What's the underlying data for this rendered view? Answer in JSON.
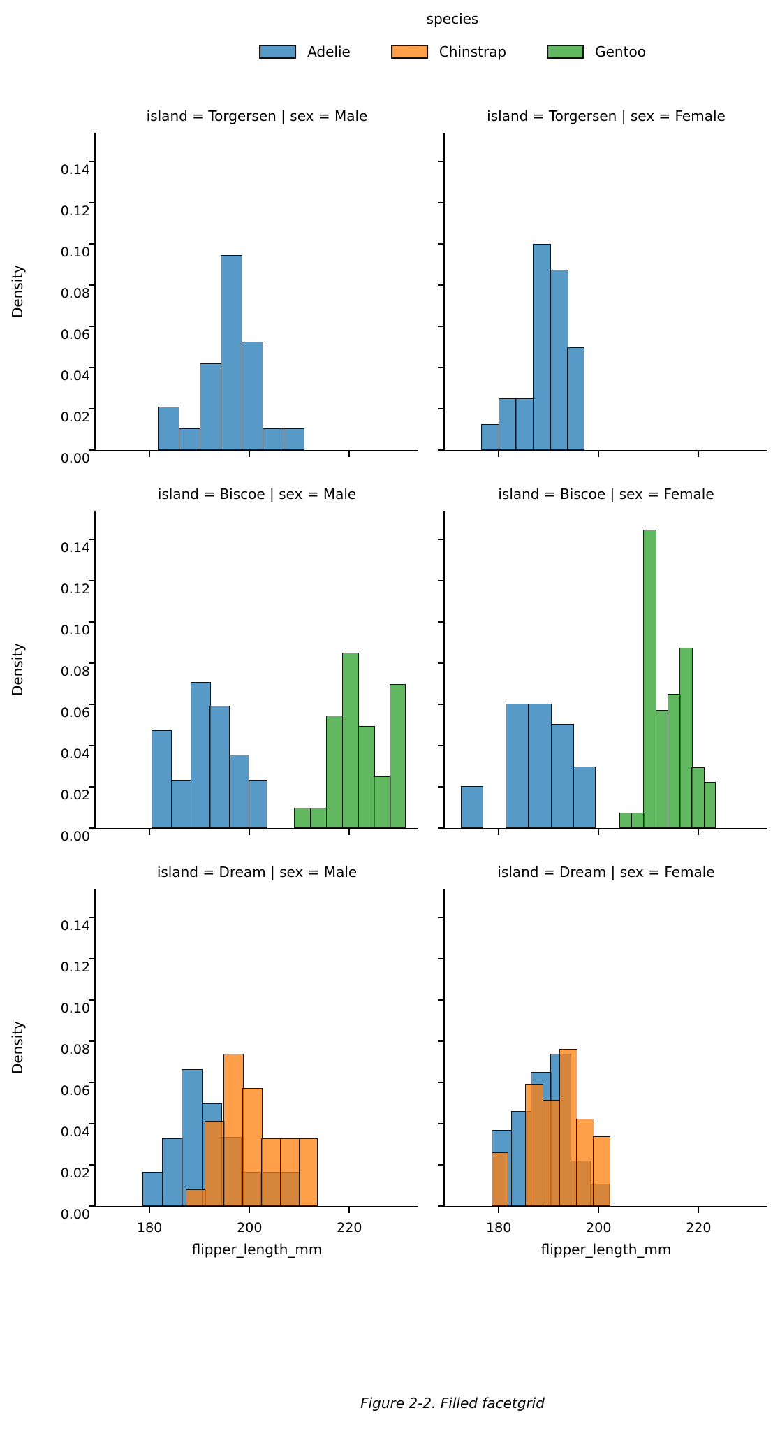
{
  "legend": {
    "title": "species",
    "entries": [
      {
        "label": "Adelie",
        "fill": "rgba(31,119,180,0.75)"
      },
      {
        "label": "Chinstrap",
        "fill": "rgba(255,127,14,0.75)"
      },
      {
        "label": "Gentoo",
        "fill": "rgba(44,160,44,0.75)"
      }
    ]
  },
  "caption": "Figure 2-2. Filled facetgrid",
  "chart_data": {
    "type": "bar",
    "subtype": "faceted-histogram-density",
    "xlabel": "flipper_length_mm",
    "ylabel": "Density",
    "xlim": [
      169.2,
      233.8
    ],
    "ylim": [
      0,
      0.154
    ],
    "xticks": [
      180,
      200,
      220
    ],
    "xtick_labels": [
      "180",
      "200",
      "220"
    ],
    "ytick_values": [
      0.0,
      0.02,
      0.04,
      0.06,
      0.08,
      0.1,
      0.12,
      0.14
    ],
    "ytick_labels": [
      "0.00",
      "0.02",
      "0.04",
      "0.06",
      "0.08",
      "0.10",
      "0.12",
      "0.14"
    ],
    "grid": false,
    "legend_position": "top-center",
    "colors": {
      "adelie": "rgba(31,119,180,0.75)",
      "chinstrap": "rgba(255,127,14,0.75)",
      "gentoo": "rgba(44,160,44,0.75)",
      "bar_edge": "#0a0a0a",
      "adelie_flat": "#5795c7",
      "chinstrap_flat": "#ff9f4a",
      "gentoo_flat": "#61b761"
    },
    "facets": [
      {
        "title": "island = Torgersen | sex = Male",
        "island": "Torgersen",
        "sex": "Male",
        "series": [
          {
            "species": "Adelie",
            "fill": "rgba(31,119,180,0.75)",
            "bins": [
              [
                181.6,
                185.8,
                0.021
              ],
              [
                185.8,
                190.0,
                0.0105
              ],
              [
                190.0,
                194.2,
                0.042
              ],
              [
                194.2,
                198.4,
                0.0945
              ],
              [
                198.4,
                202.6,
                0.0525
              ],
              [
                202.6,
                206.8,
                0.0105
              ],
              [
                206.8,
                211.0,
                0.0105
              ]
            ]
          }
        ]
      },
      {
        "title": "island = Torgersen | sex = Female",
        "island": "Torgersen",
        "sex": "Female",
        "series": [
          {
            "species": "Adelie",
            "fill": "rgba(31,119,180,0.75)",
            "bins": [
              [
                176.5,
                179.94,
                0.0125
              ],
              [
                179.94,
                183.38,
                0.025
              ],
              [
                183.38,
                186.82,
                0.025
              ],
              [
                186.82,
                190.26,
                0.1
              ],
              [
                190.26,
                193.7,
                0.0875
              ],
              [
                193.7,
                197.14,
                0.05
              ]
            ]
          }
        ]
      },
      {
        "title": "island = Biscoe | sex = Male",
        "island": "Biscoe",
        "sex": "Male",
        "series": [
          {
            "species": "Adelie",
            "fill": "rgba(31,119,180,0.75)",
            "bins": [
              [
                180.4,
                184.27,
                0.0475
              ],
              [
                184.27,
                188.14,
                0.0235
              ],
              [
                188.14,
                192.01,
                0.071
              ],
              [
                192.01,
                195.88,
                0.0595
              ],
              [
                195.88,
                199.75,
                0.0355
              ],
              [
                199.75,
                203.62,
                0.0235
              ]
            ]
          },
          {
            "species": "Gentoo",
            "fill": "rgba(44,160,44,0.75)",
            "bins": [
              [
                208.9,
                212.1,
                0.01
              ],
              [
                212.1,
                215.3,
                0.01
              ],
              [
                215.3,
                218.5,
                0.0545
              ],
              [
                218.5,
                221.7,
                0.085
              ],
              [
                221.7,
                224.9,
                0.0495
              ],
              [
                224.9,
                228.1,
                0.025
              ],
              [
                228.1,
                231.3,
                0.07
              ]
            ]
          }
        ]
      },
      {
        "title": "island = Biscoe | sex = Female",
        "island": "Biscoe",
        "sex": "Female",
        "series": [
          {
            "species": "Adelie",
            "fill": "rgba(31,119,180,0.75)",
            "bins": [
              [
                172.4,
                176.9,
                0.0205
              ],
              [
                181.4,
                185.9,
                0.0605
              ],
              [
                185.9,
                190.4,
                0.0605
              ],
              [
                190.4,
                194.9,
                0.0505
              ],
              [
                194.9,
                199.4,
                0.03
              ]
            ]
          },
          {
            "species": "Gentoo",
            "fill": "rgba(44,160,44,0.75)",
            "bins": [
              [
                204.1,
                206.52,
                0.0075
              ],
              [
                206.52,
                208.94,
                0.0075
              ],
              [
                208.94,
                211.36,
                0.145
              ],
              [
                211.36,
                213.78,
                0.0575
              ],
              [
                213.78,
                216.2,
                0.065
              ],
              [
                216.2,
                218.62,
                0.0875
              ],
              [
                218.62,
                221.04,
                0.0295
              ],
              [
                221.04,
                223.46,
                0.0225
              ]
            ]
          }
        ]
      },
      {
        "title": "island = Dream | sex = Male",
        "island": "Dream",
        "sex": "Male",
        "series": [
          {
            "species": "Adelie",
            "fill": "rgba(31,119,180,0.75)",
            "bins": [
              [
                178.6,
                182.53,
                0.0165
              ],
              [
                182.53,
                186.46,
                0.033
              ],
              [
                186.46,
                190.39,
                0.0665
              ],
              [
                190.39,
                194.32,
                0.05
              ],
              [
                194.32,
                198.25,
                0.0335
              ],
              [
                198.25,
                202.18,
                0.0165
              ],
              [
                202.18,
                206.11,
                0.0165
              ],
              [
                206.11,
                210.04,
                0.0165
              ]
            ]
          },
          {
            "species": "Chinstrap",
            "fill": "rgba(255,127,14,0.75)",
            "bins": [
              [
                187.3,
                191.07,
                0.008
              ],
              [
                191.07,
                194.84,
                0.0415
              ],
              [
                194.84,
                198.61,
                0.074
              ],
              [
                198.61,
                202.38,
                0.0575
              ],
              [
                202.38,
                206.15,
                0.033
              ],
              [
                206.15,
                209.92,
                0.033
              ],
              [
                209.92,
                213.69,
                0.033
              ]
            ]
          }
        ]
      },
      {
        "title": "island = Dream | sex = Female",
        "island": "Dream",
        "sex": "Female",
        "series": [
          {
            "species": "Adelie",
            "fill": "rgba(31,119,180,0.75)",
            "bins": [
              [
                178.5,
                182.45,
                0.037
              ],
              [
                182.45,
                186.4,
                0.046
              ],
              [
                186.4,
                190.35,
                0.065
              ],
              [
                190.35,
                194.3,
                0.074
              ],
              [
                194.3,
                198.25,
                0.022
              ],
              [
                198.25,
                202.2,
                0.011
              ]
            ]
          },
          {
            "species": "Chinstrap",
            "fill": "rgba(255,127,14,0.75)",
            "bins": [
              [
                178.5,
                181.9,
                0.026
              ],
              [
                185.3,
                188.7,
                0.0595
              ],
              [
                188.7,
                192.1,
                0.0515
              ],
              [
                192.1,
                195.5,
                0.0765
              ],
              [
                195.5,
                198.9,
                0.0425
              ],
              [
                198.9,
                202.3,
                0.034
              ]
            ]
          }
        ]
      }
    ]
  }
}
